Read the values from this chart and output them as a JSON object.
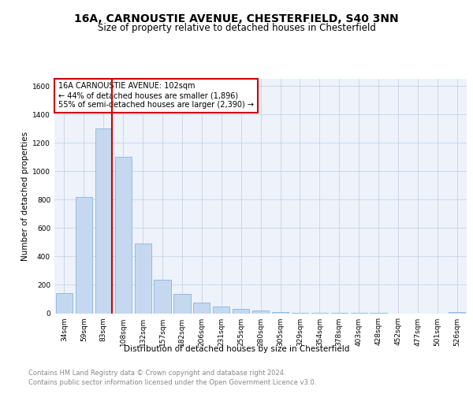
{
  "title": "16A, CARNOUSTIE AVENUE, CHESTERFIELD, S40 3NN",
  "subtitle": "Size of property relative to detached houses in Chesterfield",
  "xlabel": "Distribution of detached houses by size in Chesterfield",
  "ylabel": "Number of detached properties",
  "categories": [
    "34sqm",
    "59sqm",
    "83sqm",
    "108sqm",
    "132sqm",
    "157sqm",
    "182sqm",
    "206sqm",
    "231sqm",
    "255sqm",
    "280sqm",
    "305sqm",
    "329sqm",
    "354sqm",
    "378sqm",
    "403sqm",
    "428sqm",
    "452sqm",
    "477sqm",
    "501sqm",
    "526sqm"
  ],
  "values": [
    140,
    820,
    1300,
    1100,
    490,
    235,
    135,
    75,
    45,
    30,
    20,
    10,
    5,
    5,
    2,
    2,
    2,
    0,
    0,
    0,
    10
  ],
  "bar_color": "#c5d8f0",
  "bar_edgecolor": "#7aadd4",
  "annotation_title": "16A CARNOUSTIE AVENUE: 102sqm",
  "annotation_line1": "← 44% of detached houses are smaller (1,896)",
  "annotation_line2": "55% of semi-detached houses are larger (2,390) →",
  "annotation_box_edgecolor": "#cc0000",
  "ylim": [
    0,
    1650
  ],
  "yticks": [
    0,
    200,
    400,
    600,
    800,
    1000,
    1200,
    1400,
    1600
  ],
  "footer_line1": "Contains HM Land Registry data © Crown copyright and database right 2024.",
  "footer_line2": "Contains public sector information licensed under the Open Government Licence v3.0.",
  "background_color": "#edf2fb",
  "grid_color": "#c0cfe0",
  "title_fontsize": 10,
  "subtitle_fontsize": 8.5,
  "axis_label_fontsize": 7.5,
  "tick_fontsize": 6.5,
  "annotation_fontsize": 7,
  "footer_fontsize": 6
}
